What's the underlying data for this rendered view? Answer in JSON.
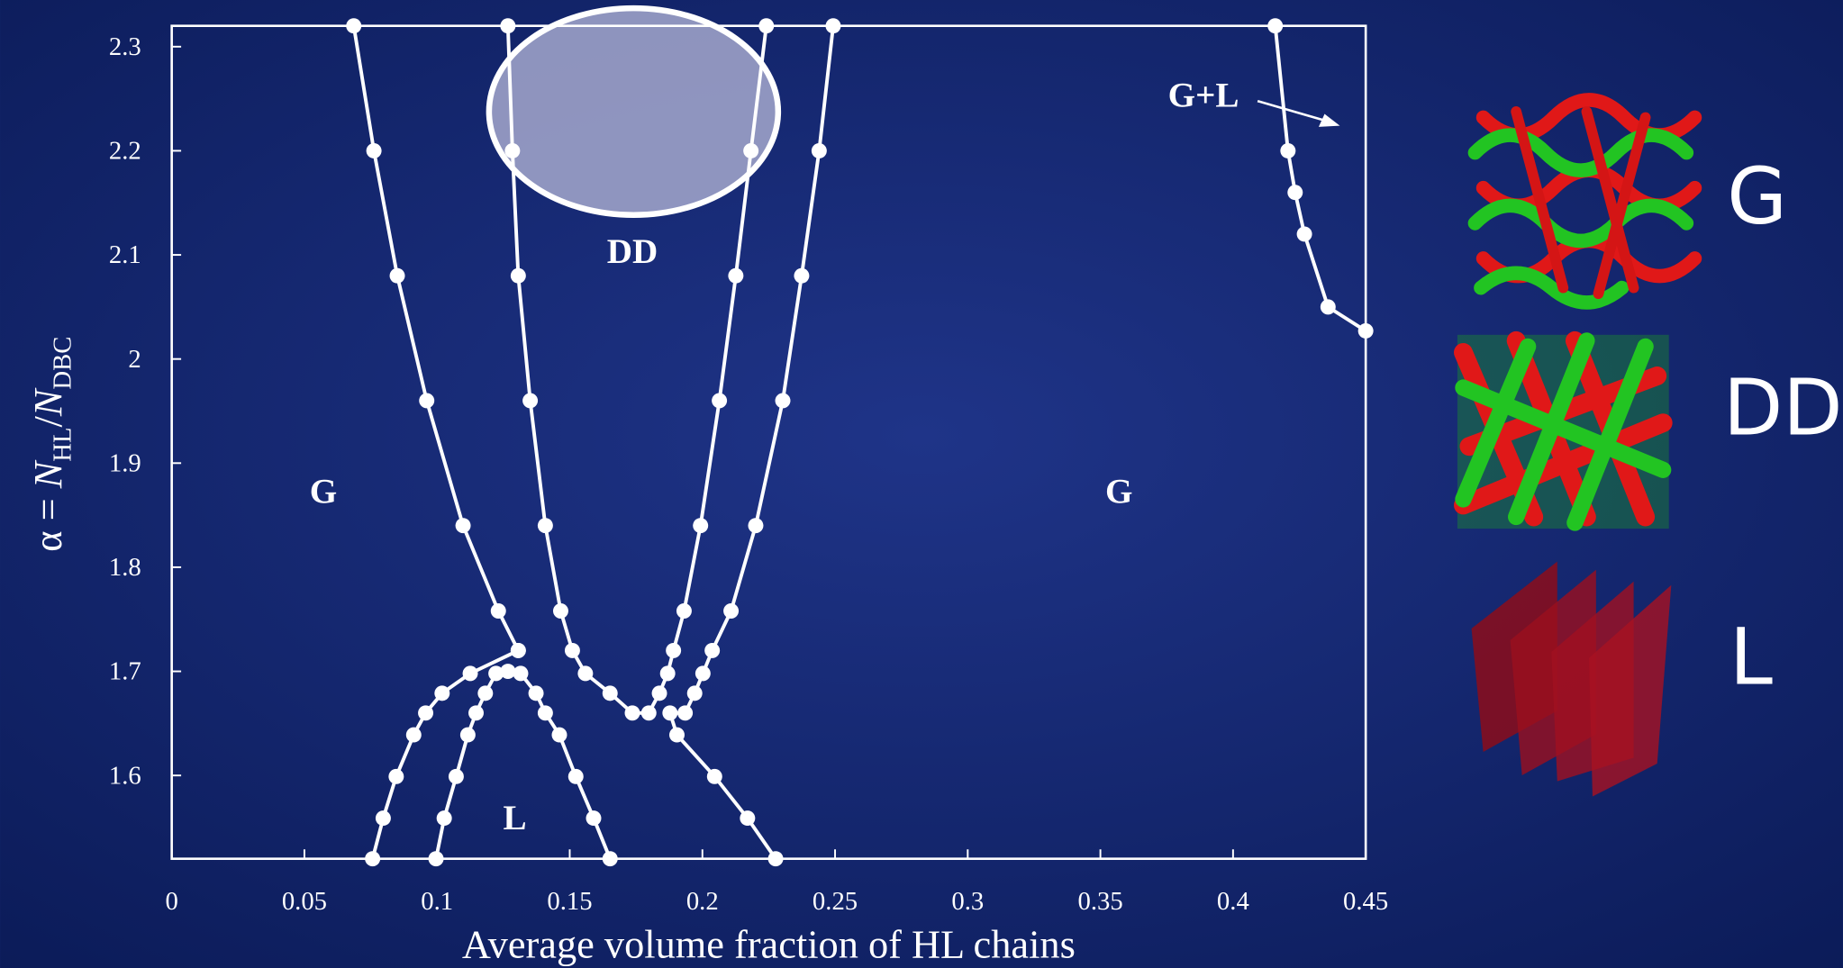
{
  "chart_data": {
    "type": "line",
    "xlabel": "Average volume fraction of HL chains",
    "ylabel_parts": [
      "α = ",
      "N",
      "HL",
      "/",
      "N",
      "DBC"
    ],
    "xlim": [
      0,
      0.45
    ],
    "ylim": [
      1.52,
      2.32
    ],
    "xticks": [
      0,
      0.05,
      0.1,
      0.15,
      0.2,
      0.25,
      0.3,
      0.35,
      0.4,
      0.45
    ],
    "yticks": [
      1.6,
      1.7,
      1.8,
      1.9,
      2,
      2.1,
      2.2,
      2.3
    ],
    "color": "#ffffff",
    "series": [
      {
        "color": "#ffffff",
        "x": [
          0.0686,
          0.0762,
          0.085,
          0.0961,
          0.1098,
          0.1231,
          0.1306
        ],
        "values": [
          2.32,
          2.2,
          2.08,
          1.96,
          1.84,
          1.758,
          1.72
        ]
      },
      {
        "color": "#ffffff",
        "x": [
          0.1306,
          0.1125,
          0.1019,
          0.0957,
          0.0912,
          0.0846,
          0.0797,
          0.0757
        ],
        "values": [
          1.72,
          1.698,
          1.679,
          1.66,
          1.639,
          1.599,
          1.559,
          1.52
        ]
      },
      {
        "color": "#ffffff",
        "x": [
          0.0996,
          0.1027,
          0.1072,
          0.1116,
          0.1147,
          0.1182,
          0.1222,
          0.1267,
          0.1315,
          0.1373,
          0.1408,
          0.1461,
          0.1523,
          0.159,
          0.1652
        ],
        "values": [
          1.52,
          1.559,
          1.599,
          1.639,
          1.66,
          1.679,
          1.698,
          1.7,
          1.698,
          1.679,
          1.66,
          1.639,
          1.599,
          1.559,
          1.52
        ]
      },
      {
        "color": "#ffffff",
        "x": [
          0.1267,
          0.1284,
          0.1306,
          0.1351,
          0.1408,
          0.1466,
          0.151,
          0.1559,
          0.1652,
          0.1736,
          0.1798,
          0.1838,
          0.1869,
          0.1891,
          0.1931,
          0.1993,
          0.2064,
          0.2126,
          0.2183,
          0.2241
        ],
        "values": [
          2.32,
          2.2,
          2.08,
          1.96,
          1.84,
          1.758,
          1.72,
          1.698,
          1.679,
          1.66,
          1.66,
          1.679,
          1.698,
          1.72,
          1.758,
          1.84,
          1.96,
          2.08,
          2.2,
          2.32
        ]
      },
      {
        "color": "#ffffff",
        "x": [
          0.2493,
          0.244,
          0.2374,
          0.2303,
          0.2201,
          0.2108,
          0.2037,
          0.2002,
          0.1971,
          0.1935,
          0.1878,
          0.1904,
          0.2046,
          0.217,
          0.2276
        ],
        "values": [
          2.32,
          2.2,
          2.08,
          1.96,
          1.84,
          1.758,
          1.72,
          1.698,
          1.679,
          1.66,
          1.66,
          1.639,
          1.599,
          1.559,
          1.52
        ]
      },
      {
        "color": "#ffffff",
        "x": [
          0.4159,
          0.4207,
          0.4234,
          0.4269,
          0.4358,
          0.45
        ],
        "values": [
          2.32,
          2.2,
          2.16,
          2.12,
          2.05,
          2.027
        ]
      }
    ],
    "annotations": [
      {
        "text": "G"
      },
      {
        "text": "G"
      },
      {
        "text": "DD"
      },
      {
        "text": "L"
      },
      {
        "text": "G+L"
      }
    ]
  },
  "structures": [
    "G",
    "DD",
    "L"
  ]
}
